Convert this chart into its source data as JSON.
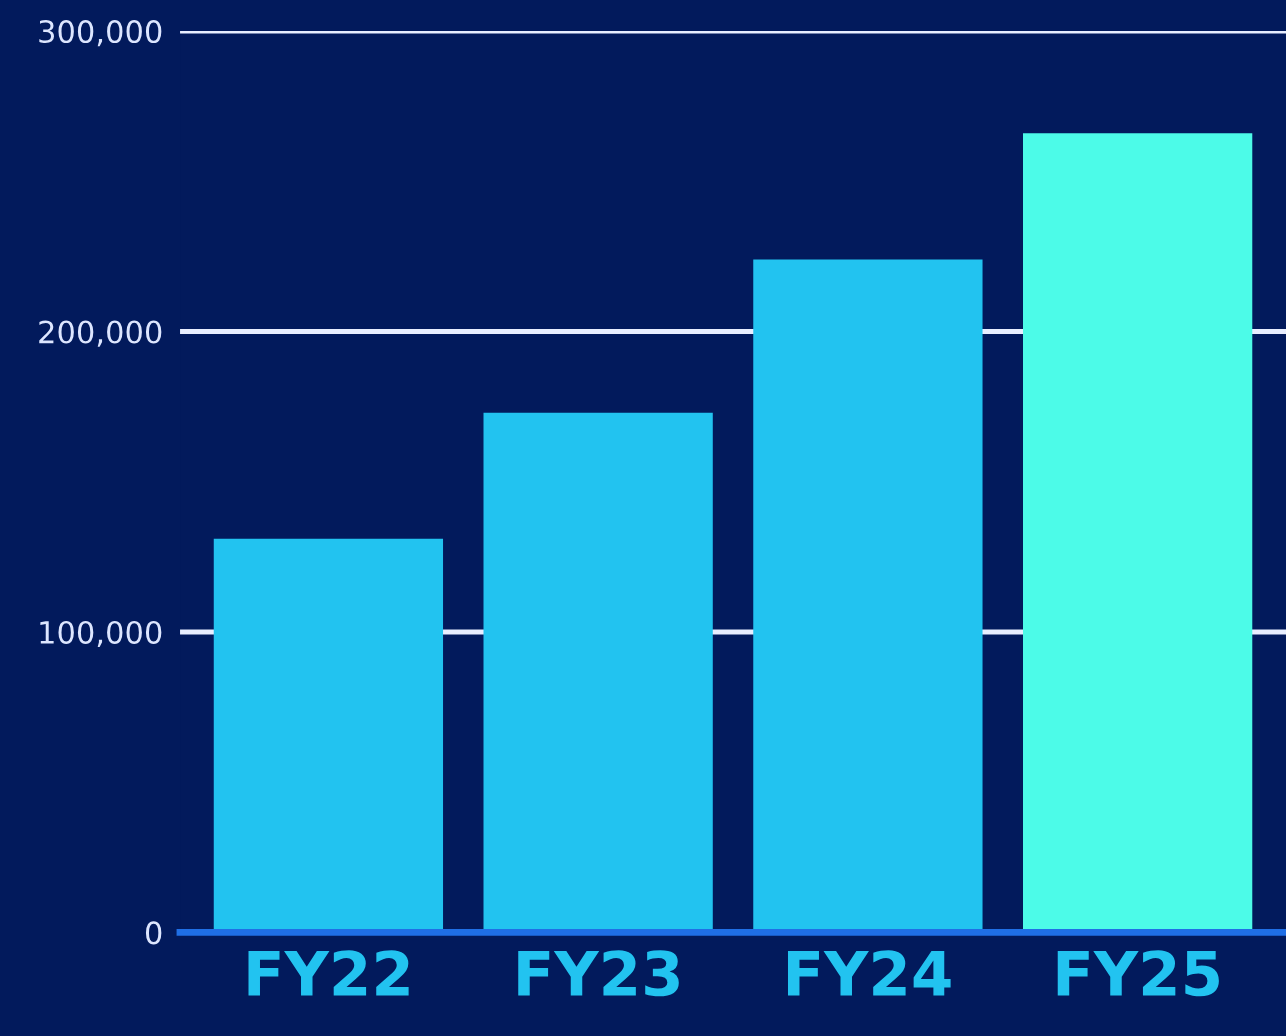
{
  "chart_data": {
    "type": "bar",
    "categories": [
      "FY22",
      "FY23",
      "FY24",
      "FY25"
    ],
    "values": [
      131000,
      173000,
      224000,
      266000
    ],
    "colors": [
      "#22c3f0",
      "#22c3f0",
      "#22c3f0",
      "#4cfbe8"
    ],
    "ylim": [
      0,
      300000
    ],
    "yticks": [
      {
        "value": 0,
        "label": "0"
      },
      {
        "value": 100000,
        "label": "100,000"
      },
      {
        "value": 200000,
        "label": "200,000"
      },
      {
        "value": 300000,
        "label": "300,000"
      }
    ],
    "grid": "y"
  }
}
